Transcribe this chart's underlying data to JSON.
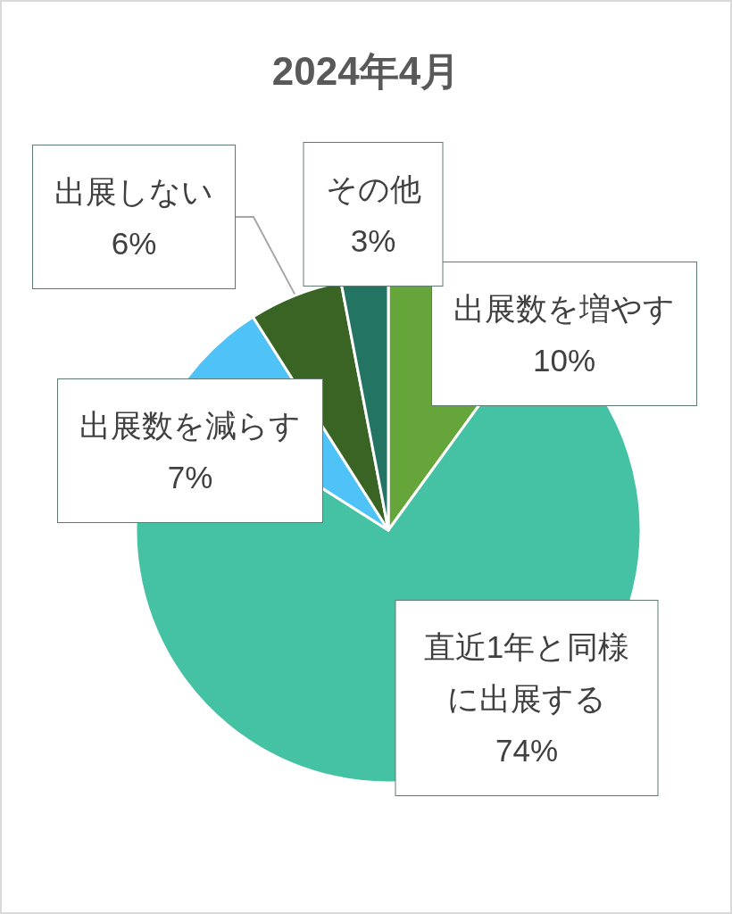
{
  "chart_data": {
    "type": "pie",
    "title": "2024年4月",
    "categories": [
      "出展数を増やす",
      "直近1年と同様に出展する",
      "出展数を減らす",
      "出展しない",
      "その他"
    ],
    "values": [
      10,
      74,
      7,
      6,
      3
    ],
    "value_labels": [
      "10%",
      "74%",
      "7%",
      "6%",
      "3%"
    ],
    "colors": [
      "#65a539",
      "#45c1a4",
      "#4fc3f7",
      "#3a6423",
      "#237463"
    ]
  }
}
